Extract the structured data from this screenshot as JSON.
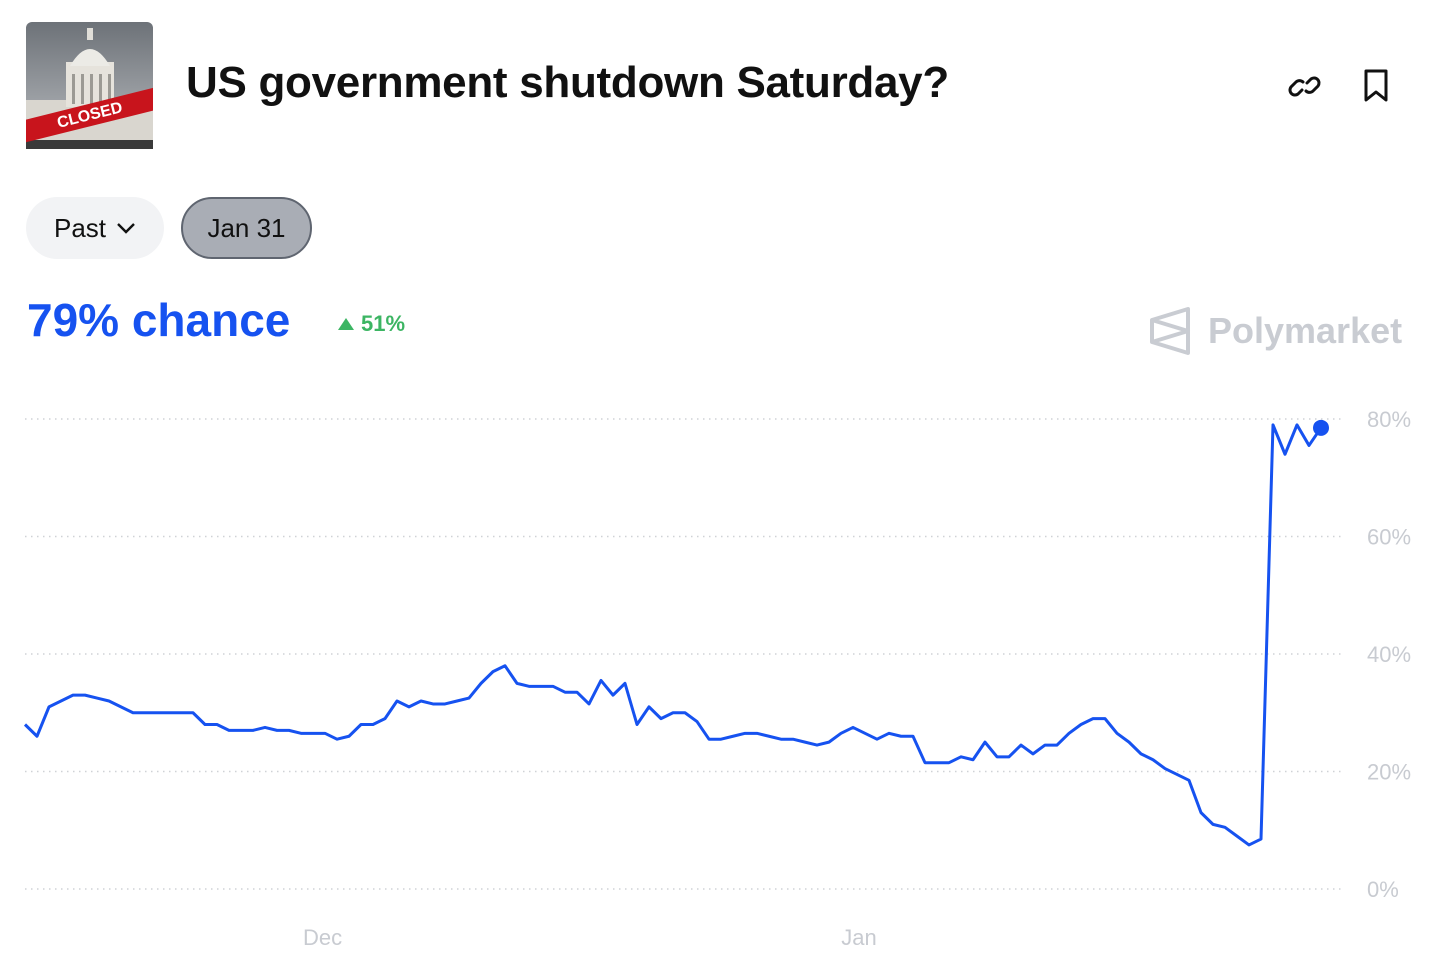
{
  "header": {
    "title": "US government shutdown Saturday?",
    "image_text": "CLOSED"
  },
  "filters": {
    "period": "Past",
    "date": "Jan 31"
  },
  "probability": {
    "value": "79% chance",
    "change": "51%"
  },
  "brand": "Polymarket",
  "chart_data": {
    "type": "line",
    "color": "#1652f0",
    "end_marker": true,
    "grid": true,
    "values": [
      28,
      26,
      31,
      32,
      33,
      33,
      32.5,
      32,
      31,
      30,
      30,
      30,
      30,
      30,
      30,
      28,
      28,
      27,
      27,
      27,
      27.5,
      27,
      27,
      26.5,
      26.5,
      26.5,
      25.5,
      26,
      28,
      28,
      29,
      32,
      31,
      32,
      31.5,
      31.5,
      32,
      32.5,
      35,
      37,
      38,
      35,
      34.5,
      34.5,
      34.5,
      33.5,
      33.5,
      31.5,
      35.5,
      33,
      35,
      28,
      31,
      29,
      30,
      30,
      28.5,
      25.5,
      25.5,
      26,
      26.5,
      26.5,
      26,
      25.5,
      25.5,
      25,
      24.5,
      25,
      26.5,
      27.5,
      26.5,
      25.5,
      26.5,
      26,
      26,
      21.5,
      21.5,
      21.5,
      22.5,
      22,
      25,
      22.5,
      22.5,
      24.5,
      23,
      24.5,
      24.5,
      26.5,
      28,
      29,
      29,
      26.5,
      25,
      23,
      22,
      20.5,
      19.5,
      18.5,
      13,
      11,
      10.5,
      9,
      7.5,
      8.5,
      79,
      74,
      79,
      75.5,
      78.5
    ],
    "xlim": [
      0,
      108
    ],
    "xticks": [
      {
        "value": 24.8,
        "label": "Dec"
      },
      {
        "value": 69.5,
        "label": "Jan"
      }
    ],
    "ylim": [
      0,
      80
    ],
    "yticks": [
      {
        "value": 0,
        "label": "0%"
      },
      {
        "value": 20,
        "label": "20%"
      },
      {
        "value": 40,
        "label": "40%"
      },
      {
        "value": 60,
        "label": "60%"
      },
      {
        "value": 80,
        "label": "80%"
      }
    ]
  }
}
